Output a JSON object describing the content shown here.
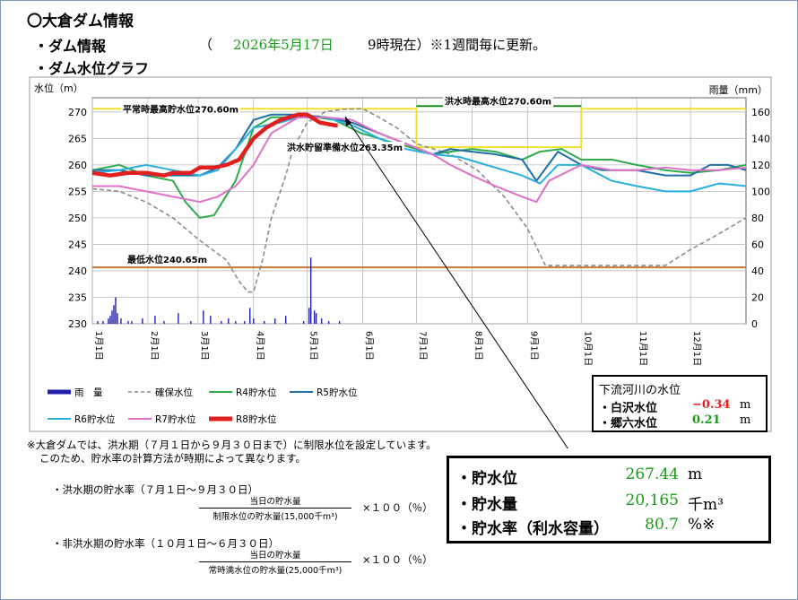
{
  "page": {
    "title": "〇大倉ダム情報",
    "section_info": "・ダム情報",
    "paren_open": "（",
    "date": "2026年5月17日",
    "time_note": "9時現在）※1週間毎に更新。",
    "section_graph": "・ダム水位グラフ"
  },
  "colors": {
    "rain": "#1f1fa8",
    "secure": "#8c8c8c",
    "r4": "#2eac4c",
    "r5": "#1e6ea8",
    "r6": "#29b0e0",
    "r7": "#e070c8",
    "r8": "#e02020",
    "normal_max": "#f0e030",
    "min_level": "#c87832",
    "flood_max": "#1a8a1a"
  },
  "chart_data": {
    "type": "line",
    "ylabel_left": "水位（m）",
    "ylabel_right": "雨量（mm）",
    "ylim": [
      230,
      272
    ],
    "ylim_right": [
      0,
      168
    ],
    "yticks_left": [
      "230",
      "235",
      "240",
      "245",
      "250",
      "255",
      "260",
      "265",
      "270"
    ],
    "yticks_right": [
      "0",
      "20",
      "40",
      "60",
      "80",
      "100",
      "120",
      "140",
      "160"
    ],
    "x_tick_labels": [
      "1月1日",
      "2月1日",
      "3月1日",
      "4月1日",
      "5月1日",
      "6月1日",
      "7月1日",
      "8月1日",
      "9月1日",
      "10月1日",
      "11月1日",
      "12月1日"
    ],
    "x_tick_days": [
      0,
      31,
      59,
      90,
      120,
      151,
      181,
      212,
      243,
      273,
      304,
      334
    ],
    "xlim": [
      0,
      365
    ],
    "reference_lines": [
      {
        "label": "平常時最高貯水位270.60m",
        "segments": [
          [
            0,
            270.6
          ],
          [
            181,
            270.6
          ],
          [
            181,
            263.35
          ],
          [
            273,
            263.35
          ],
          [
            273,
            270.6
          ],
          [
            365,
            270.6
          ]
        ]
      },
      {
        "label": "洪水時最高水位270.60m",
        "segments": [
          [
            181,
            270.6
          ],
          [
            273,
            270.6
          ]
        ]
      },
      {
        "label": "洪水貯留準備水位263.35m"
      },
      {
        "label": "最低水位240.65m",
        "segments": [
          [
            0,
            240.65
          ],
          [
            365,
            240.65
          ]
        ]
      }
    ],
    "series": [
      {
        "name": "確保水位",
        "key": "secure",
        "style": "dashed",
        "x": [
          0,
          15,
          30,
          45,
          59,
          75,
          82,
          87,
          90,
          95,
          100,
          108,
          112,
          120,
          130,
          140,
          151,
          160,
          170,
          181,
          200,
          215,
          230,
          243,
          253,
          273,
          290,
          304,
          320,
          334,
          350,
          365
        ],
        "y": [
          255.5,
          255,
          253,
          250,
          246,
          242,
          238,
          236,
          236,
          242,
          250,
          258,
          263,
          268,
          270,
          270.5,
          270.6,
          269,
          267,
          264,
          262,
          259,
          254,
          248,
          241,
          241,
          241,
          241,
          241,
          244,
          247,
          250
        ]
      },
      {
        "name": "R4貯水位",
        "key": "r4",
        "style": "solid",
        "x": [
          0,
          15,
          30,
          45,
          52,
          60,
          68,
          80,
          90,
          100,
          115,
          125,
          135,
          150,
          165,
          181,
          190,
          200,
          212,
          225,
          240,
          250,
          262,
          273,
          290,
          304,
          320,
          334,
          350,
          365
        ],
        "y": [
          259,
          260,
          258,
          257,
          253,
          250,
          250.5,
          257,
          267,
          269,
          269,
          269,
          268.5,
          266,
          264.5,
          263,
          262,
          262.5,
          263,
          262.5,
          261,
          262.5,
          263,
          261,
          261,
          260,
          259,
          258.5,
          259,
          260
        ]
      },
      {
        "name": "R5貯水位",
        "key": "r5",
        "style": "solid",
        "x": [
          0,
          15,
          30,
          45,
          60,
          70,
          80,
          90,
          100,
          115,
          130,
          145,
          160,
          175,
          190,
          200,
          212,
          225,
          240,
          248,
          260,
          273,
          285,
          304,
          320,
          334,
          345,
          355,
          365
        ],
        "y": [
          259,
          259,
          258,
          258,
          258,
          259.5,
          263,
          268.5,
          269.5,
          269.5,
          269,
          268,
          266,
          264,
          262,
          263,
          262.5,
          262,
          261,
          257,
          262.5,
          260,
          259,
          259,
          258,
          258,
          260,
          260,
          259
        ]
      },
      {
        "name": "R6貯水位",
        "key": "r6",
        "style": "solid",
        "x": [
          0,
          15,
          30,
          45,
          60,
          70,
          80,
          90,
          105,
          115,
          130,
          145,
          160,
          175,
          190,
          205,
          220,
          240,
          250,
          260,
          273,
          290,
          304,
          320,
          334,
          350,
          365
        ],
        "y": [
          258.5,
          259,
          260,
          259,
          258,
          259,
          263,
          267,
          268,
          269,
          269,
          267.5,
          265,
          263,
          262,
          261.5,
          260,
          258,
          256.5,
          260,
          260,
          257,
          256,
          255,
          255,
          256.5,
          256
        ]
      },
      {
        "name": "R7貯水位",
        "key": "r7",
        "style": "solid",
        "x": [
          0,
          15,
          30,
          45,
          60,
          70,
          80,
          90,
          100,
          115,
          130,
          145,
          160,
          175,
          190,
          200,
          212,
          225,
          240,
          248,
          255,
          273,
          290,
          304,
          320,
          334,
          350,
          365
        ],
        "y": [
          256,
          256,
          255,
          254,
          253,
          254,
          256,
          260,
          266,
          269,
          269,
          268.5,
          266,
          264,
          262,
          260,
          258,
          256,
          254,
          253,
          257,
          260,
          259,
          259,
          259.5,
          259,
          259,
          259.5
        ]
      },
      {
        "name": "R8貯水位",
        "key": "r8",
        "style": "thick",
        "x": [
          0,
          10,
          20,
          30,
          40,
          45,
          55,
          60,
          68,
          75,
          82,
          90,
          97,
          105,
          115,
          120,
          127,
          135,
          137
        ],
        "y": [
          258.5,
          258,
          258.5,
          258.5,
          258,
          258.5,
          258.5,
          259.5,
          259.5,
          260,
          261,
          265,
          267,
          268.5,
          269.5,
          269.5,
          268,
          267.5,
          267.44
        ]
      }
    ],
    "rain": {
      "name": "雨　量",
      "x": [
        3,
        6,
        9,
        10,
        11,
        12,
        13,
        14,
        16,
        20,
        22,
        28,
        35,
        40,
        48,
        55,
        62,
        66,
        72,
        76,
        80,
        85,
        88,
        90,
        96,
        102,
        108,
        118,
        121,
        122,
        124,
        125,
        128,
        132,
        138
      ],
      "y": [
        2,
        2,
        4,
        6,
        10,
        14,
        20,
        8,
        4,
        2,
        2,
        4,
        6,
        2,
        8,
        2,
        10,
        6,
        2,
        4,
        2,
        2,
        12,
        4,
        2,
        4,
        6,
        2,
        12,
        50,
        10,
        8,
        4,
        2,
        2
      ]
    },
    "legend": [
      "雨　量",
      "確保水位",
      "R4貯水位",
      "R5貯水位",
      "R6貯水位",
      "R7貯水位",
      "R8貯水位"
    ]
  },
  "low_river": {
    "title": "下流河川の水位",
    "rows": [
      {
        "label": "・白沢水位",
        "value": "−0.34",
        "unit": "m",
        "color": "#e02020"
      },
      {
        "label": "・郷六水位",
        "value": "0.21",
        "unit": "m",
        "color": "#1a9a1a"
      }
    ]
  },
  "storage": {
    "rows": [
      {
        "label": "・貯水位",
        "value": "267.44",
        "unit": "m"
      },
      {
        "label": "・貯水量",
        "value": "20,165",
        "unit": "千m³"
      },
      {
        "label": "・貯水率（利水容量）",
        "value": "80.7",
        "unit": "%※"
      }
    ]
  },
  "notes": {
    "line1": "※大倉ダムでは、洪水期（７月１日から９月３０日まで）に制限水位を設定しています。",
    "line2": "このため、貯水率の計算方法が時期によって異なります。",
    "flood_title": "・洪水期の貯水率（７月１日～９月３０日）",
    "flood_num": "当日の貯水量",
    "flood_den": "制限水位の貯水量(15,000千m³)",
    "flood_mult": "×１００（％）",
    "nonflood_title": "・非洪水期の貯水率（１０月１日～６月３０日）",
    "nonflood_num": "当日の貯水量",
    "nonflood_den": "常時満水位の貯水量(25,000千m³)",
    "nonflood_mult": "×１００（％）"
  }
}
